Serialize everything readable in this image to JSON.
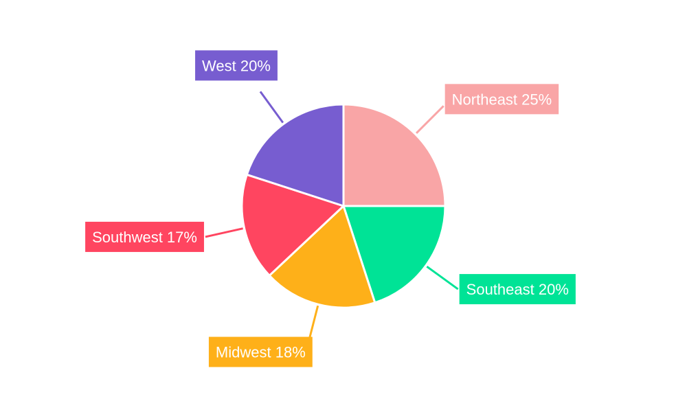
{
  "chart_data": {
    "type": "pie",
    "title": "",
    "start_angle": "top, clockwise",
    "legend": "none",
    "slices": [
      {
        "label": "Northeast",
        "value": 25,
        "display": "Northeast 25%",
        "color": "#F9A5A6"
      },
      {
        "label": "Southeast",
        "value": 20,
        "display": "Southeast 20%",
        "color": "#00E396"
      },
      {
        "label": "Midwest",
        "value": 18,
        "display": "Midwest 18%",
        "color": "#FEB019"
      },
      {
        "label": "Southwest",
        "value": 17,
        "display": "Southwest 17%",
        "color": "#FF4560"
      },
      {
        "label": "West",
        "value": 20,
        "display": "West 20%",
        "color": "#775DD0"
      }
    ]
  }
}
